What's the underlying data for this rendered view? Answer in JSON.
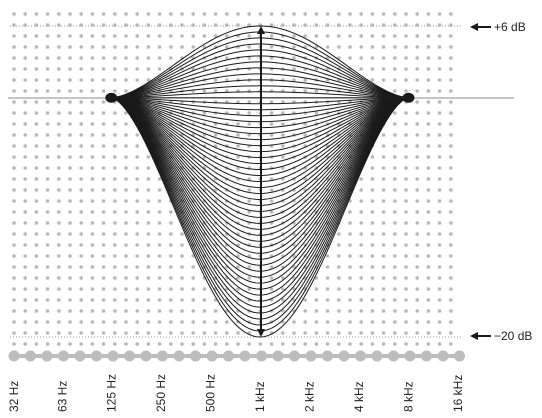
{
  "chart_data": {
    "type": "line",
    "title": "",
    "xlabel": "",
    "ylabel": "",
    "x_scale": "log",
    "x_ticks": [
      {
        "value": 32,
        "label": "32 Hz"
      },
      {
        "value": 63,
        "label": "63 Hz"
      },
      {
        "value": 125,
        "label": "125 Hz"
      },
      {
        "value": 250,
        "label": "250 Hz"
      },
      {
        "value": 500,
        "label": "500 Hz"
      },
      {
        "value": 1000,
        "label": "1 kHz"
      },
      {
        "value": 2000,
        "label": "2 kHz"
      },
      {
        "value": 4000,
        "label": "4 kHz"
      },
      {
        "value": 8000,
        "label": "8 kHz"
      },
      {
        "value": 16000,
        "label": "16 kHz"
      }
    ],
    "y_unit": "dB",
    "ylim": [
      -20,
      6
    ],
    "annotations": {
      "max_label": "+6 dB",
      "min_label": "−20 dB"
    },
    "center_frequency": 1000,
    "curve_shape": "peaking bell, gain swept from max to min",
    "gains_db": [
      6,
      5.5,
      5,
      4.5,
      4,
      3.5,
      3,
      2.5,
      2,
      1.5,
      1,
      0.5,
      0,
      -0.5,
      -1,
      -1.5,
      -2,
      -2.5,
      -3,
      -3.5,
      -4,
      -4.5,
      -5,
      -5.5,
      -6,
      -6.5,
      -7,
      -7.5,
      -8,
      -8.5,
      -9,
      -9.5,
      -10,
      -10.5,
      -11,
      -11.5,
      -12,
      -12.5,
      -13,
      -13.5,
      -14,
      -14.5,
      -15,
      -15.5,
      -16,
      -16.5,
      -17,
      -17.5,
      -18,
      -18.5,
      -19,
      -19.5,
      -20
    ],
    "curve_extent_hz": [
      125,
      8000
    ],
    "grid": "dotted",
    "colors": {
      "curves": "#1a1a1a",
      "grid_dots": "#b8b8b8",
      "baseline": "#888888",
      "limit_lines": "#999999",
      "track": "#bdbdbd"
    }
  }
}
